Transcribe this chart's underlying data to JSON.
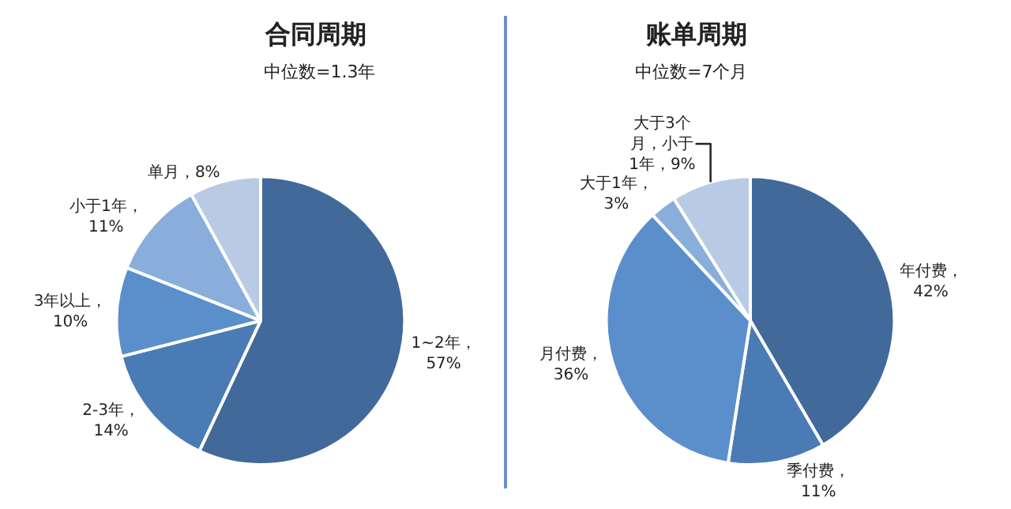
{
  "chart_data": [
    {
      "type": "pie",
      "title": "合同周期",
      "subtitle": "中位数=1.3年",
      "categories": [
        "1~2年",
        "2-3年",
        "3年以上",
        "小于1年",
        "单月"
      ],
      "values": [
        57,
        14,
        10,
        11,
        8
      ],
      "colors": [
        "#41699a",
        "#4a7bb5",
        "#5a8fcc",
        "#8aaedb",
        "#b9cbe4"
      ],
      "value_labels": [
        "，\n57%",
        "，\n14%",
        "，\n10%",
        "，\n11%",
        "，8%"
      ],
      "legend": false
    },
    {
      "type": "pie",
      "title": "账单周期",
      "subtitle": "中位数=7个月",
      "categories": [
        "年付费",
        "季付费",
        "月付费",
        "大于1年",
        "大于3个月，小于1年"
      ],
      "values": [
        42,
        11,
        36,
        3,
        9
      ],
      "colors": [
        "#41699a",
        "#4a7bb5",
        "#5a8fcc",
        "#8aaedb",
        "#b9cbe4"
      ],
      "value_labels": [
        "，\n42%",
        "，\n11%",
        "，\n36%",
        "，\n3%",
        "，9%"
      ],
      "legend": false
    }
  ]
}
